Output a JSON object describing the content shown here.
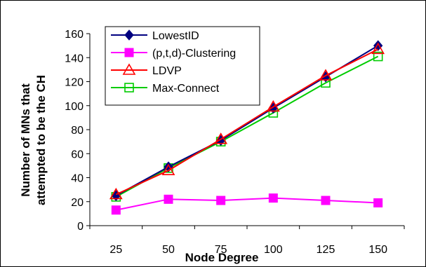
{
  "chart_data": {
    "type": "line",
    "title": "",
    "xlabel": "Node Degree",
    "ylabel": [
      "Number of MNs that",
      "attempted to be the CH"
    ],
    "categories": [
      "25",
      "50",
      "75",
      "100",
      "125",
      "150"
    ],
    "ylim": [
      0,
      160
    ],
    "yticks": [
      0,
      20,
      40,
      60,
      80,
      100,
      120,
      140,
      160
    ],
    "grid": false,
    "legend_position": "top-left",
    "series": [
      {
        "name": "LowestID",
        "color": "#000080",
        "marker": "diamond",
        "values": [
          25,
          49,
          71,
          98,
          124,
          150
        ]
      },
      {
        "name": "(p,t,d)-Clustering",
        "color": "#ff00ff",
        "marker": "square",
        "values": [
          13,
          22,
          21,
          23,
          21,
          19
        ]
      },
      {
        "name": "LDVP",
        "color": "#ff0000",
        "marker": "triangle",
        "values": [
          26,
          46,
          72,
          99,
          125,
          147
        ]
      },
      {
        "name": "Max-Connect",
        "color": "#00cc00",
        "marker": "square-open",
        "values": [
          24,
          48,
          70,
          94,
          119,
          141
        ]
      }
    ]
  }
}
